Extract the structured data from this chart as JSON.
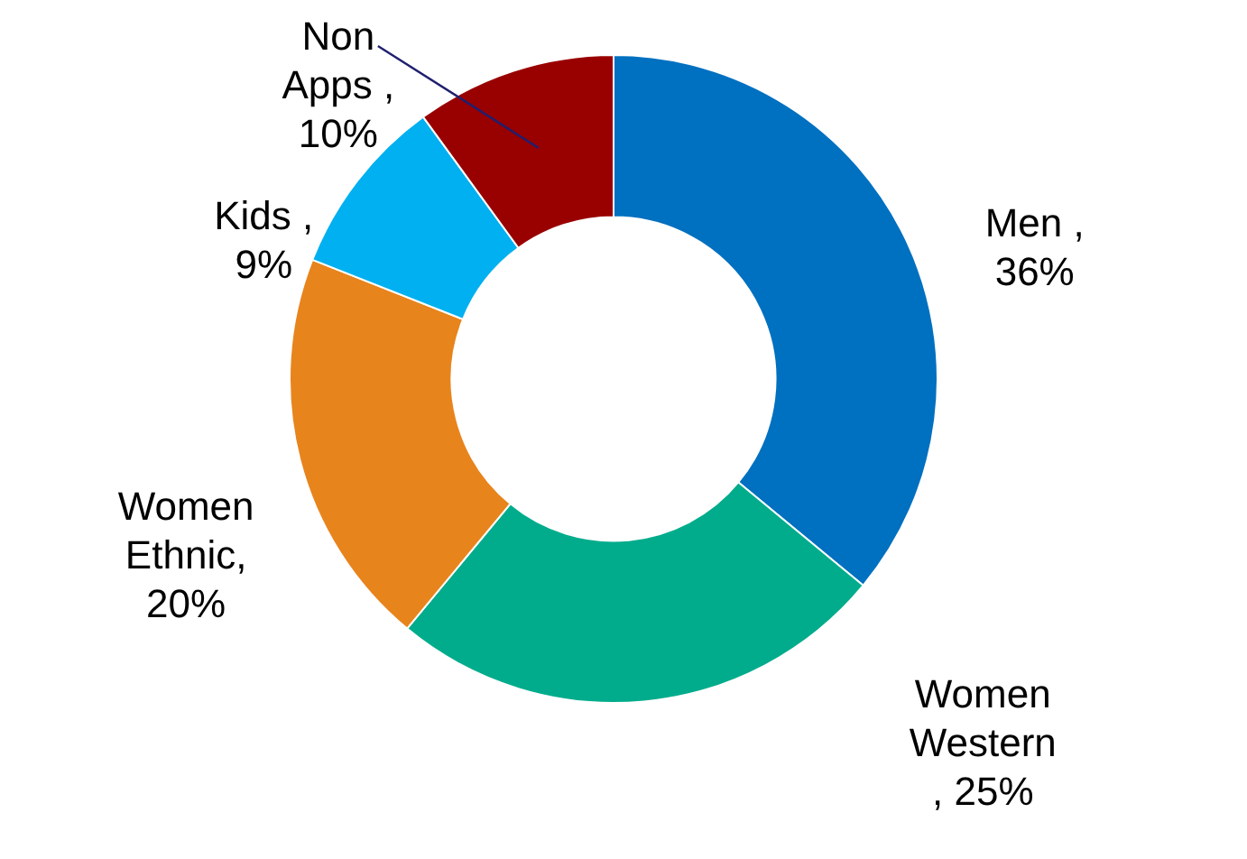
{
  "chart_data": {
    "type": "donut",
    "categories": [
      "Men",
      "Women Western",
      "Women Ethnic",
      "Kids",
      "Non Apps"
    ],
    "value_labels": [
      " , 36%",
      " , 25%",
      ", 20%",
      " , 9%",
      " , 10%"
    ],
    "values": [
      36,
      25,
      20,
      9,
      10
    ],
    "colors": [
      "#0070c0",
      "#00ac8c",
      "#e8841c",
      "#00b0f0",
      "#990000"
    ],
    "legend": false
  }
}
